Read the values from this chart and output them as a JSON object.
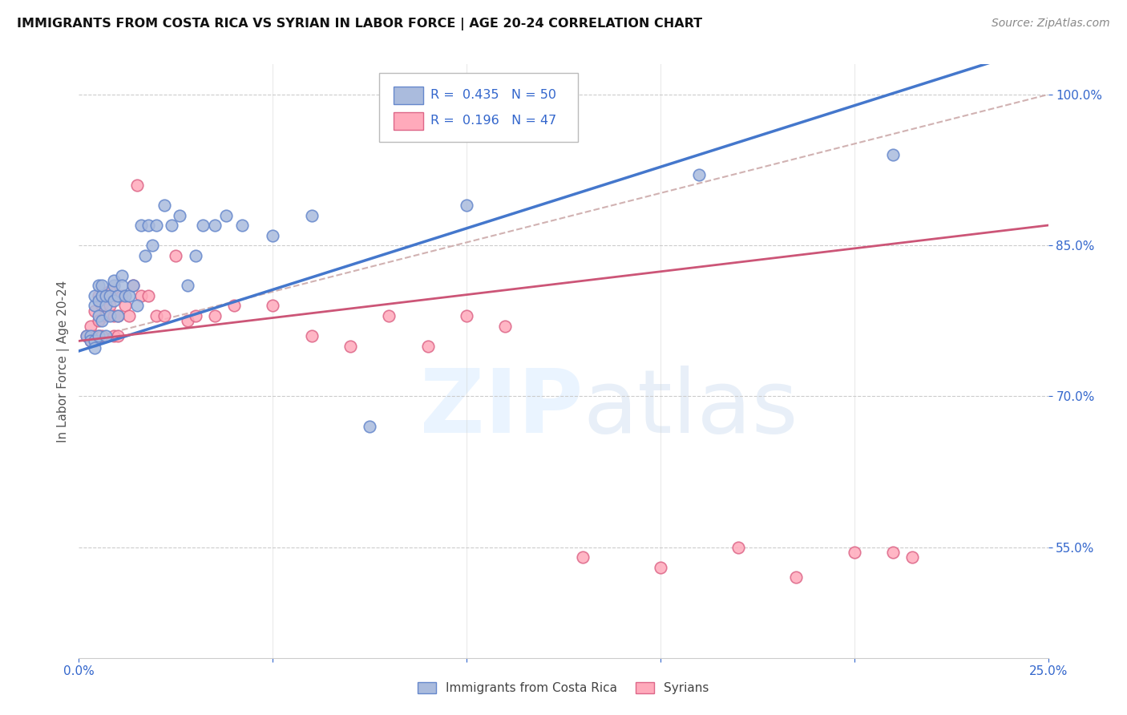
{
  "title": "IMMIGRANTS FROM COSTA RICA VS SYRIAN IN LABOR FORCE | AGE 20-24 CORRELATION CHART",
  "source": "Source: ZipAtlas.com",
  "ylabel": "In Labor Force | Age 20-24",
  "xmin": 0.0,
  "xmax": 0.25,
  "ymin": 0.44,
  "ymax": 1.03,
  "yticks": [
    0.55,
    0.7,
    0.85,
    1.0
  ],
  "ytick_labels": [
    "55.0%",
    "70.0%",
    "85.0%",
    "100.0%"
  ],
  "grid_color": "#cccccc",
  "background_color": "#ffffff",
  "blue_scatter_color": "#aabbdd",
  "blue_edge_color": "#6688cc",
  "pink_scatter_color": "#ffaabb",
  "pink_edge_color": "#dd6688",
  "blue_line_color": "#4477cc",
  "pink_line_color": "#cc5577",
  "dashed_line_color": "#ccaaaa",
  "r1": "0.435",
  "n1": "50",
  "r2": "0.196",
  "n2": "47",
  "legend_text_color": "#3366cc",
  "axis_label_color": "#3366cc",
  "costa_rica_x": [
    0.002,
    0.003,
    0.003,
    0.004,
    0.004,
    0.004,
    0.004,
    0.005,
    0.005,
    0.005,
    0.005,
    0.006,
    0.006,
    0.006,
    0.007,
    0.007,
    0.007,
    0.008,
    0.008,
    0.009,
    0.009,
    0.009,
    0.01,
    0.01,
    0.011,
    0.011,
    0.012,
    0.013,
    0.014,
    0.015,
    0.016,
    0.017,
    0.018,
    0.019,
    0.02,
    0.022,
    0.024,
    0.026,
    0.028,
    0.03,
    0.032,
    0.035,
    0.038,
    0.042,
    0.05,
    0.06,
    0.075,
    0.1,
    0.16,
    0.21
  ],
  "costa_rica_y": [
    0.76,
    0.76,
    0.755,
    0.79,
    0.8,
    0.755,
    0.748,
    0.81,
    0.78,
    0.795,
    0.76,
    0.8,
    0.775,
    0.81,
    0.76,
    0.79,
    0.8,
    0.78,
    0.8,
    0.795,
    0.81,
    0.815,
    0.8,
    0.78,
    0.82,
    0.81,
    0.8,
    0.8,
    0.81,
    0.79,
    0.87,
    0.84,
    0.87,
    0.85,
    0.87,
    0.89,
    0.87,
    0.88,
    0.81,
    0.84,
    0.87,
    0.87,
    0.88,
    0.87,
    0.86,
    0.88,
    0.67,
    0.89,
    0.92,
    0.94
  ],
  "syrian_x": [
    0.002,
    0.003,
    0.003,
    0.004,
    0.004,
    0.004,
    0.005,
    0.005,
    0.005,
    0.006,
    0.006,
    0.007,
    0.007,
    0.008,
    0.008,
    0.009,
    0.009,
    0.01,
    0.01,
    0.011,
    0.012,
    0.013,
    0.014,
    0.015,
    0.016,
    0.018,
    0.02,
    0.022,
    0.025,
    0.028,
    0.03,
    0.035,
    0.04,
    0.05,
    0.06,
    0.07,
    0.08,
    0.09,
    0.1,
    0.11,
    0.13,
    0.15,
    0.17,
    0.185,
    0.2,
    0.21,
    0.215
  ],
  "syrian_y": [
    0.76,
    0.755,
    0.77,
    0.76,
    0.785,
    0.755,
    0.8,
    0.775,
    0.76,
    0.76,
    0.79,
    0.78,
    0.8,
    0.805,
    0.79,
    0.78,
    0.76,
    0.78,
    0.76,
    0.8,
    0.79,
    0.78,
    0.81,
    0.91,
    0.8,
    0.8,
    0.78,
    0.78,
    0.84,
    0.775,
    0.78,
    0.78,
    0.79,
    0.79,
    0.76,
    0.75,
    0.78,
    0.75,
    0.78,
    0.77,
    0.54,
    0.53,
    0.55,
    0.52,
    0.545,
    0.545,
    0.54
  ]
}
